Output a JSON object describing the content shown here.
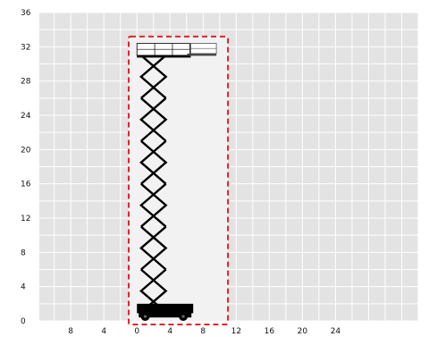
{
  "chart_data": {
    "type": "diagram",
    "title": "",
    "xlabel": "",
    "ylabel": "",
    "x_ticks": [
      {
        "value": -8,
        "label": "8"
      },
      {
        "value": -4,
        "label": "4"
      },
      {
        "value": 0,
        "label": "0"
      },
      {
        "value": 4,
        "label": "4"
      },
      {
        "value": 8,
        "label": "8"
      },
      {
        "value": 12,
        "label": "12"
      },
      {
        "value": 16,
        "label": "16"
      },
      {
        "value": 20,
        "label": "20"
      },
      {
        "value": 24,
        "label": "24"
      }
    ],
    "y_ticks": [
      {
        "value": 0,
        "label": "0"
      },
      {
        "value": 4,
        "label": "4"
      },
      {
        "value": 8,
        "label": "8"
      },
      {
        "value": 12,
        "label": "12"
      },
      {
        "value": 16,
        "label": "16"
      },
      {
        "value": 20,
        "label": "20"
      },
      {
        "value": 24,
        "label": "24"
      },
      {
        "value": 28,
        "label": "28"
      },
      {
        "value": 32,
        "label": "32"
      },
      {
        "value": 36,
        "label": "36"
      }
    ],
    "xlim": [
      -11.8,
      34
    ],
    "ylim": [
      0,
      36
    ],
    "grid": true,
    "working_envelope": {
      "x": [
        -1,
        11
      ],
      "y": [
        0,
        33.2
      ],
      "style": "dashed",
      "color": "#e0242b"
    },
    "scissor": {
      "x_left": 0.5,
      "x_right": 3.5,
      "y_bottom": 1,
      "y_top": 31,
      "sections": 6
    },
    "platform": {
      "x": [
        0,
        6.5
      ],
      "y": 31,
      "rail_top": 32.4,
      "deck_extension_x": [
        6.5,
        9.6
      ]
    },
    "chassis": {
      "x": [
        0,
        6.8
      ],
      "y": [
        0,
        2
      ],
      "wheels_x": [
        1,
        5.6
      ]
    },
    "colors": {
      "background": "#e3e3e3",
      "grid": "#ffffff",
      "envelope_fill": "#f2f2f2",
      "envelope_border": "#e0242b",
      "machine": "#000000"
    }
  }
}
